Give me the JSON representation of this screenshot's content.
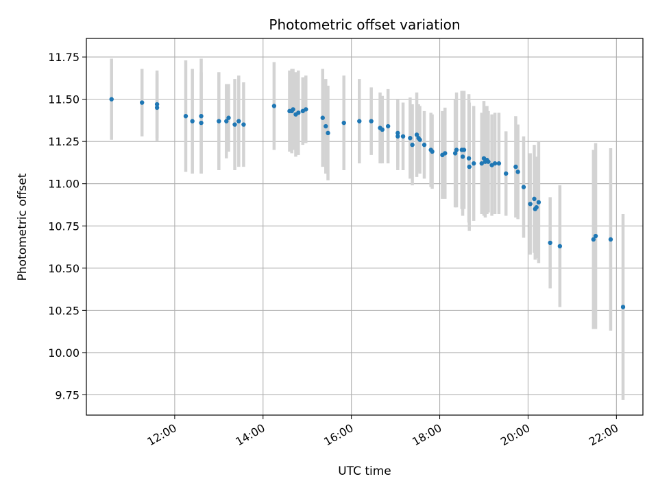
{
  "chart_data": {
    "type": "scatter",
    "title": "Photometric offset variation",
    "xlabel": "UTC time",
    "ylabel": "Photometric offset",
    "grid": true,
    "legend": "none",
    "x_unit": "hours UTC",
    "xlim": [
      10.0,
      22.6
    ],
    "ylim": [
      9.63,
      11.86
    ],
    "x_ticks": [
      {
        "value": 12,
        "label": "12:00"
      },
      {
        "value": 14,
        "label": "14:00"
      },
      {
        "value": 16,
        "label": "16:00"
      },
      {
        "value": 18,
        "label": "18:00"
      },
      {
        "value": 20,
        "label": "20:00"
      },
      {
        "value": 22,
        "label": "22:00"
      }
    ],
    "y_ticks": [
      {
        "value": 9.75,
        "label": "9.75"
      },
      {
        "value": 10.0,
        "label": "10.00"
      },
      {
        "value": 10.25,
        "label": "10.25"
      },
      {
        "value": 10.5,
        "label": "10.50"
      },
      {
        "value": 10.75,
        "label": "10.75"
      },
      {
        "value": 11.0,
        "label": "11.00"
      },
      {
        "value": 11.25,
        "label": "11.25"
      },
      {
        "value": 11.5,
        "label": "11.50"
      },
      {
        "value": 11.75,
        "label": "11.75"
      }
    ],
    "colors": {
      "points": "#1f77b4",
      "error_bars": "#d3d3d3",
      "grid": "#b0b0b0"
    },
    "series": [
      {
        "x": [
          10.57,
          11.26,
          11.6,
          11.6,
          12.25,
          12.4,
          12.6,
          12.6,
          13.0,
          13.17,
          13.22,
          13.36,
          13.45,
          13.56,
          14.25,
          14.6,
          14.65,
          14.68,
          14.74,
          14.8,
          14.9,
          14.97,
          15.35,
          15.42,
          15.47,
          15.83,
          16.18,
          16.45,
          16.65,
          16.7,
          16.83,
          17.05,
          17.05,
          17.17,
          17.33,
          17.38,
          17.48,
          17.52,
          17.55,
          17.65,
          17.8,
          17.83,
          18.06,
          18.12,
          18.35,
          18.38,
          18.5,
          18.52,
          18.55,
          18.66,
          18.67,
          18.77,
          18.95,
          19.0,
          19.03,
          19.07,
          19.1,
          19.18,
          19.25,
          19.34,
          19.5,
          19.72,
          19.77,
          19.9,
          20.05,
          20.14,
          20.16,
          20.19,
          20.24,
          20.5,
          20.72,
          21.48,
          21.53,
          21.87,
          22.15
        ],
        "y": [
          11.5,
          11.48,
          11.47,
          11.45,
          11.4,
          11.37,
          11.4,
          11.36,
          11.37,
          11.37,
          11.39,
          11.35,
          11.37,
          11.35,
          11.46,
          11.43,
          11.43,
          11.44,
          11.41,
          11.42,
          11.43,
          11.44,
          11.39,
          11.34,
          11.3,
          11.36,
          11.37,
          11.37,
          11.33,
          11.32,
          11.34,
          11.3,
          11.28,
          11.28,
          11.27,
          11.23,
          11.29,
          11.27,
          11.26,
          11.23,
          11.2,
          11.19,
          11.17,
          11.18,
          11.18,
          11.2,
          11.2,
          11.16,
          11.2,
          11.15,
          11.1,
          11.12,
          11.12,
          11.15,
          11.13,
          11.14,
          11.13,
          11.11,
          11.12,
          11.12,
          11.06,
          11.1,
          11.07,
          10.98,
          10.88,
          10.91,
          10.85,
          10.86,
          10.89,
          10.65,
          10.63,
          10.67,
          10.69,
          10.67,
          10.27
        ],
        "error": [
          0.24,
          0.2,
          0.2,
          0.2,
          0.33,
          0.31,
          0.34,
          0.3,
          0.29,
          0.22,
          0.2,
          0.27,
          0.27,
          0.25,
          0.26,
          0.24,
          0.25,
          0.24,
          0.25,
          0.25,
          0.2,
          0.2,
          0.29,
          0.28,
          0.28,
          0.28,
          0.25,
          0.2,
          0.21,
          0.2,
          0.22,
          0.2,
          0.2,
          0.2,
          0.24,
          0.24,
          0.25,
          0.2,
          0.2,
          0.2,
          0.22,
          0.22,
          0.26,
          0.27,
          0.32,
          0.34,
          0.35,
          0.35,
          0.35,
          0.38,
          0.38,
          0.34,
          0.3,
          0.34,
          0.33,
          0.32,
          0.3,
          0.3,
          0.3,
          0.3,
          0.25,
          0.3,
          0.28,
          0.3,
          0.3,
          0.32,
          0.3,
          0.3,
          0.36,
          0.27,
          0.36,
          0.53,
          0.55,
          0.54,
          0.55
        ]
      }
    ]
  }
}
